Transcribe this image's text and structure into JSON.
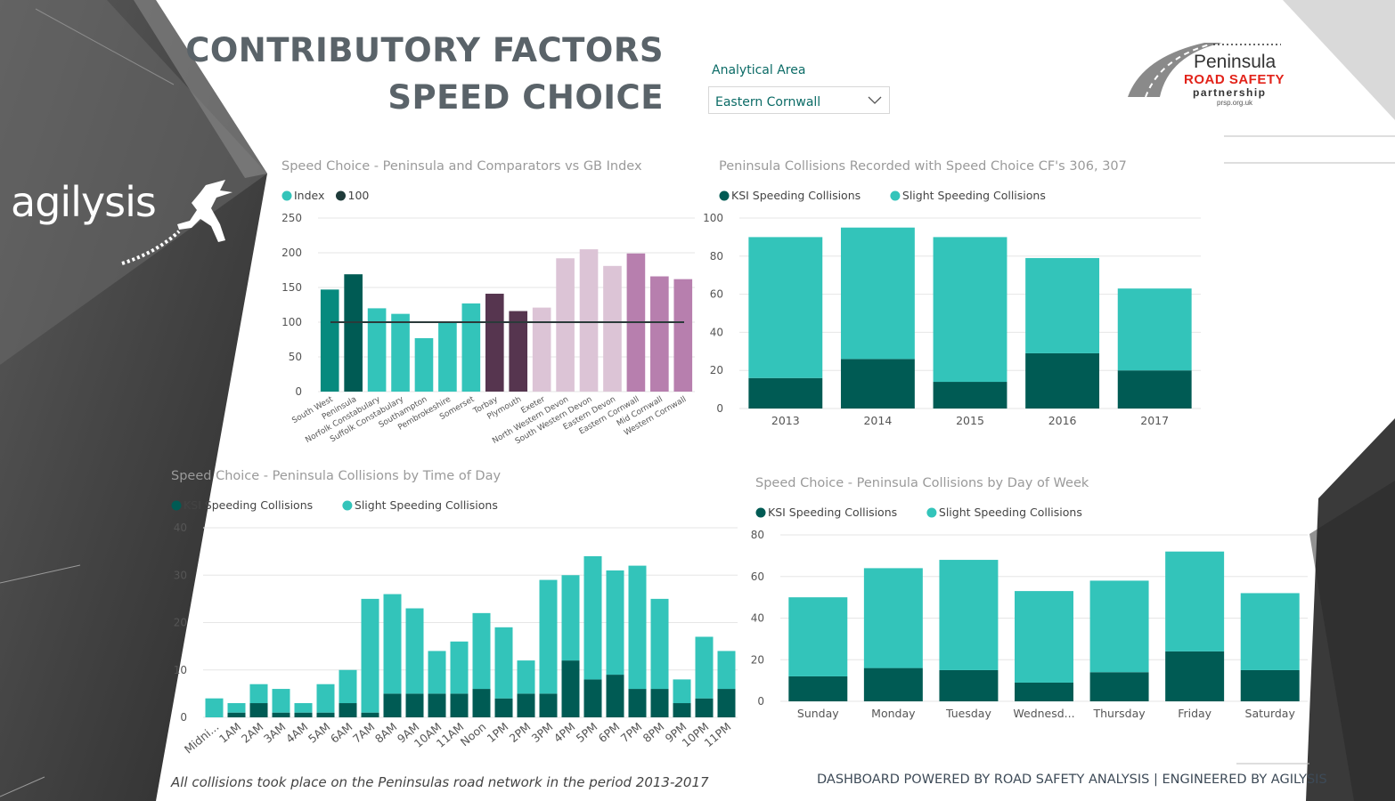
{
  "header": {
    "title_line1": "CONTRIBUTORY FACTORS",
    "title_line2": "SPEED CHOICE"
  },
  "slicer": {
    "label": "Analytical Area",
    "value": "Eastern Cornwall"
  },
  "brand": {
    "agilysis": "agilysis",
    "logo_line1": "Peninsula",
    "logo_line2": "ROAD SAFETY",
    "logo_line3": "partnership",
    "logo_url": "prsp.org.uk"
  },
  "footer": {
    "note": "All collisions took place on the Peninsulas road network in the period 2013-2017",
    "powered": "DASHBOARD POWERED BY ROAD SAFETY ANALYSIS |  ENGINEERED BY AGILYSIS"
  },
  "colors": {
    "ksi": "#005b54",
    "slight": "#33c4ba",
    "index_legend": "#33c4ba",
    "ref_legend": "#1f3b3a"
  },
  "chart_data": [
    {
      "id": "index",
      "type": "bar",
      "title": "Speed Choice - Peninsula and Comparators vs GB Index",
      "legend": [
        "Index",
        "100"
      ],
      "categories": [
        "South West",
        "Peninsula",
        "Norfolk Constabulary",
        "Suffolk Constabulary",
        "Southampton",
        "Pembrokeshire",
        "Somerset",
        "Torbay",
        "Plymouth",
        "Exeter",
        "North Western Devon",
        "South Western Devon",
        "Eastern Devon",
        "Eastern Cornwall",
        "Mid Cornwall",
        "Western Cornwall"
      ],
      "values": [
        147,
        169,
        120,
        112,
        77,
        101,
        127,
        141,
        116,
        121,
        192,
        205,
        181,
        199,
        166,
        162
      ],
      "bar_colors": [
        "#068a7e",
        "#005b54",
        "#33c4ba",
        "#33c4ba",
        "#33c4ba",
        "#33c4ba",
        "#33c4ba",
        "#56354f",
        "#56354f",
        "#dcc4d6",
        "#dcc4d6",
        "#dcc4d6",
        "#dcc4d6",
        "#b77fae",
        "#b77fae",
        "#b77fae"
      ],
      "reference": 100,
      "ylim": [
        0,
        250
      ],
      "yticks": [
        "0",
        "50",
        "100",
        "150",
        "200",
        "250"
      ]
    },
    {
      "id": "year",
      "type": "bar",
      "title": "Peninsula Collisions Recorded with Speed Choice CF's 306, 307",
      "legend": [
        "KSI Speeding Collisions",
        "Slight Speeding Collisions"
      ],
      "categories": [
        "2013",
        "2014",
        "2015",
        "2016",
        "2017"
      ],
      "series": [
        {
          "name": "KSI Speeding Collisions",
          "values": [
            16,
            26,
            14,
            29,
            20
          ]
        },
        {
          "name": "Slight Speeding Collisions",
          "values": [
            74,
            69,
            76,
            50,
            43
          ]
        }
      ],
      "ylim": [
        0,
        100
      ],
      "yticks": [
        "0",
        "20",
        "40",
        "60",
        "80",
        "100"
      ]
    },
    {
      "id": "hour",
      "type": "bar",
      "title": "Speed Choice - Peninsula Collisions by Time of Day",
      "legend": [
        "KSI Speeding Collisions",
        "Slight Speeding Collisions"
      ],
      "categories": [
        "Midni...",
        "1AM",
        "2AM",
        "3AM",
        "4AM",
        "5AM",
        "6AM",
        "7AM",
        "8AM",
        "9AM",
        "10AM",
        "11AM",
        "Noon",
        "1PM",
        "2PM",
        "3PM",
        "4PM",
        "5PM",
        "6PM",
        "7PM",
        "8PM",
        "9PM",
        "10PM",
        "11PM"
      ],
      "series": [
        {
          "name": "KSI Speeding Collisions",
          "values": [
            0,
            1,
            3,
            1,
            1,
            1,
            3,
            1,
            5,
            5,
            5,
            5,
            6,
            4,
            5,
            5,
            12,
            8,
            9,
            6,
            6,
            3,
            4,
            6
          ]
        },
        {
          "name": "Slight Speeding Collisions",
          "values": [
            4,
            2,
            4,
            5,
            2,
            6,
            7,
            24,
            21,
            18,
            9,
            11,
            16,
            15,
            7,
            24,
            18,
            26,
            22,
            26,
            19,
            5,
            13,
            8
          ]
        }
      ],
      "ylim": [
        0,
        40
      ],
      "yticks": [
        "0",
        "10",
        "20",
        "30",
        "40"
      ]
    },
    {
      "id": "day",
      "type": "bar",
      "title": "Speed Choice - Peninsula Collisions by Day of Week",
      "legend": [
        "KSI Speeding Collisions",
        "Slight Speeding Collisions"
      ],
      "categories": [
        "Sunday",
        "Monday",
        "Tuesday",
        "Wednesd...",
        "Thursday",
        "Friday",
        "Saturday"
      ],
      "series": [
        {
          "name": "KSI Speeding Collisions",
          "values": [
            12,
            16,
            15,
            9,
            14,
            24,
            15
          ]
        },
        {
          "name": "Slight Speeding Collisions",
          "values": [
            38,
            48,
            53,
            44,
            44,
            48,
            37
          ]
        }
      ],
      "ylim": [
        0,
        80
      ],
      "yticks": [
        "0",
        "20",
        "40",
        "60",
        "80"
      ]
    }
  ]
}
